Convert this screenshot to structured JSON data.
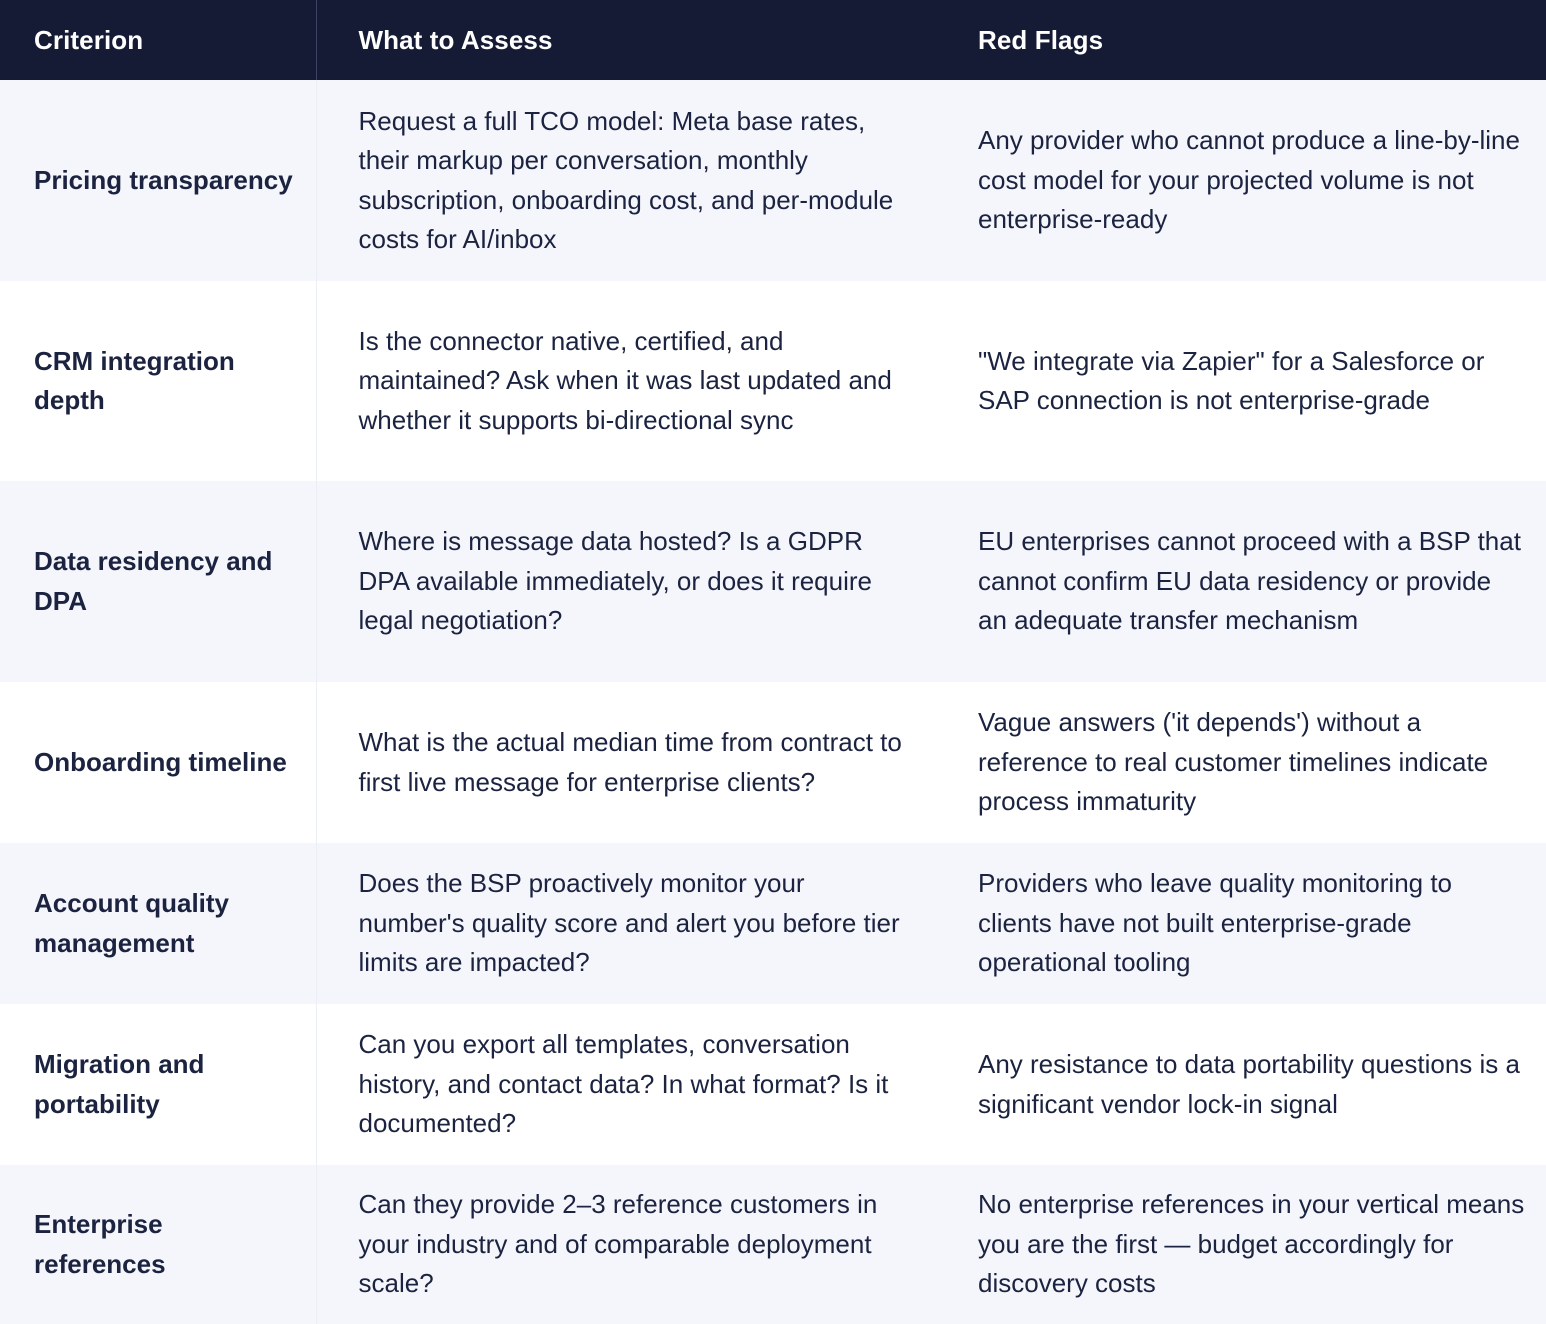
{
  "table": {
    "headers": {
      "criterion": "Criterion",
      "what_to_assess": "What to Assess",
      "red_flags": "Red Flags"
    },
    "colors": {
      "header_bg": "#151b35",
      "header_text": "#ffffff",
      "row_alt_bg": "#f5f6fb",
      "row_bg": "#ffffff",
      "body_text": "#1b2340"
    },
    "rows": [
      {
        "criterion": "Pricing transparency",
        "what_to_assess": "Request a full TCO model: Meta base rates, their markup per conversation, monthly subscription, onboarding cost, and per-module costs for AI/inbox",
        "red_flags": "Any provider who cannot produce a line-by-line cost model for your projected volume is not enterprise-ready"
      },
      {
        "criterion": "CRM integration depth",
        "what_to_assess": "Is the connector native, certified, and maintained? Ask when it was last updated and whether it supports bi-directional sync",
        "red_flags": "\"We integrate via Zapier\" for a Salesforce or SAP connection is not enterprise-grade"
      },
      {
        "criterion": "Data residency and DPA",
        "what_to_assess": "Where is message data hosted? Is a GDPR DPA available immediately, or does it require legal negotiation?",
        "red_flags": "EU enterprises cannot proceed with a BSP that cannot confirm EU data residency or provide an adequate transfer mechanism"
      },
      {
        "criterion": "Onboarding timeline",
        "what_to_assess": "What is the actual median time from contract to first live message for enterprise clients?",
        "red_flags": "Vague answers ('it depends') without a reference to real customer timelines indicate process immaturity"
      },
      {
        "criterion": "Account quality management",
        "what_to_assess": "Does the BSP proactively monitor your number's quality score and alert you before tier limits are impacted?",
        "red_flags": "Providers who leave quality monitoring to clients have not built enterprise-grade operational tooling"
      },
      {
        "criterion": "Migration and portability",
        "what_to_assess": "Can you export all templates, conversation history, and contact data? In what format? Is it documented?",
        "red_flags": "Any resistance to data portability questions is a significant vendor lock-in signal"
      },
      {
        "criterion": "Enterprise references",
        "what_to_assess": "Can they provide 2–3 reference customers in your industry and of comparable deployment scale?",
        "red_flags": "No enterprise references in your vertical means you are the first — budget accordingly for discovery costs"
      }
    ]
  }
}
